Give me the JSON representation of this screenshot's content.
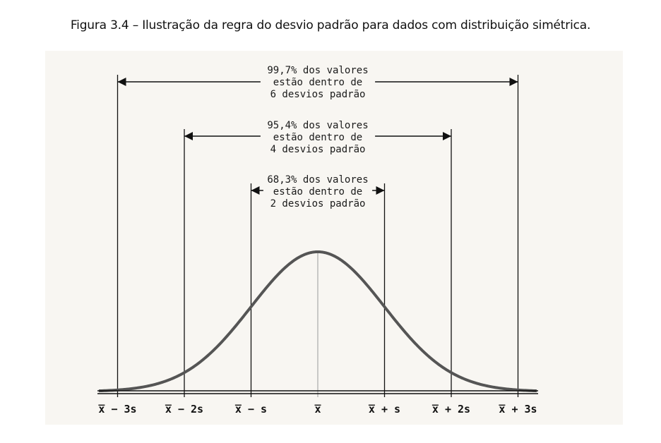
{
  "caption": "Figura 3.4 – Ilustração da regra do desvio padrão para dados com distribuição simétrica.",
  "intervals": [
    {
      "from": -3,
      "to": 3,
      "lines": [
        "99,7% dos valores",
        "estão dentro de",
        "6 desvios padrão"
      ]
    },
    {
      "from": -2,
      "to": 2,
      "lines": [
        "95,4% dos valores",
        "estão dentro de",
        "4 desvios padrão"
      ]
    },
    {
      "from": -1,
      "to": 1,
      "lines": [
        "68,3% dos valores",
        "estão dentro de",
        "2 desvios padrão"
      ]
    }
  ],
  "ticks": [
    {
      "value": -3,
      "label": "x̅ − 3s"
    },
    {
      "value": -2,
      "label": "x̅ − 2s"
    },
    {
      "value": -1,
      "label": "x̅ − s"
    },
    {
      "value": 0,
      "label": "x̅"
    },
    {
      "value": 1,
      "label": "x̅ + s"
    },
    {
      "value": 2,
      "label": "x̅ + 2s"
    },
    {
      "value": 3,
      "label": "x̅ + 3s"
    }
  ],
  "colors": {
    "curve": "#555555",
    "line": "#111111",
    "background": "#f8f6f2"
  }
}
